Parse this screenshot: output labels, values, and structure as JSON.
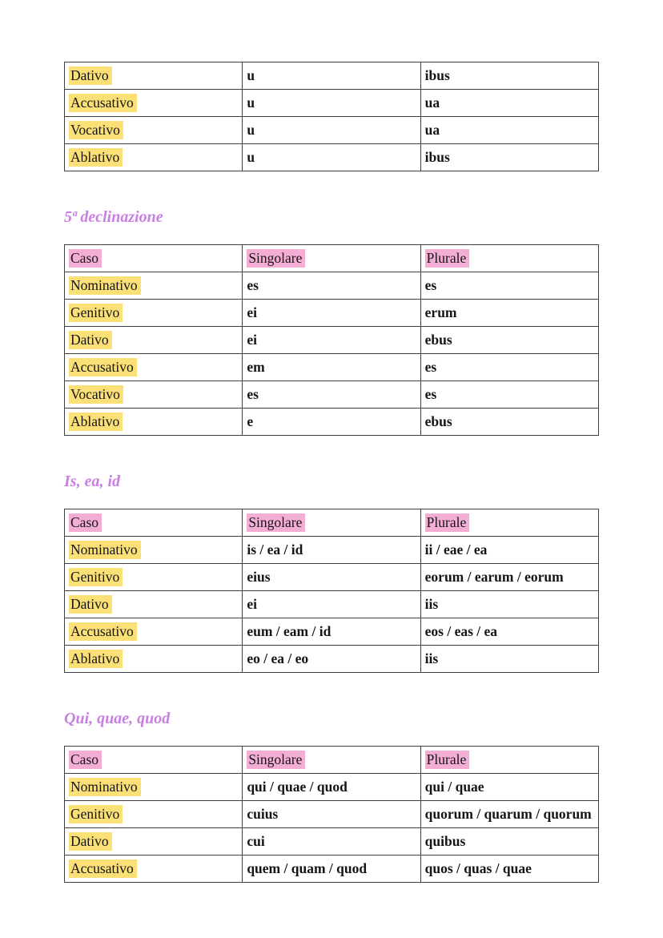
{
  "colors": {
    "highlight_yellow": "#fbe077",
    "highlight_pink": "#f4aed6",
    "heading_text": "#c77fe2",
    "table_border": "#3f3f3f",
    "body_text": "#151515"
  },
  "sections": [
    {
      "heading": null,
      "columns": null,
      "rows": [
        [
          "Dativo",
          "u",
          "ibus"
        ],
        [
          "Accusativo",
          "u",
          "ua"
        ],
        [
          "Vocativo",
          "u",
          "ua"
        ],
        [
          "Ablativo",
          "u",
          "ibus"
        ]
      ]
    },
    {
      "heading": "5ª declinazione",
      "columns": [
        "Caso",
        "Singolare",
        "Plurale"
      ],
      "rows": [
        [
          "Nominativo",
          "es",
          "es"
        ],
        [
          "Genitivo",
          "ei",
          "erum"
        ],
        [
          "Dativo",
          "ei",
          "ebus"
        ],
        [
          "Accusativo",
          "em",
          "es"
        ],
        [
          "Vocativo",
          "es",
          "es"
        ],
        [
          "Ablativo",
          "e",
          "ebus"
        ]
      ]
    },
    {
      "heading": "Is, ea, id",
      "columns": [
        "Caso",
        "Singolare",
        "Plurale"
      ],
      "rows": [
        [
          "Nominativo",
          "is / ea / id",
          "ii / eae / ea"
        ],
        [
          "Genitivo",
          "eius",
          "eorum / earum / eorum"
        ],
        [
          "Dativo",
          "ei",
          "iis"
        ],
        [
          "Accusativo",
          "eum / eam / id",
          "eos / eas / ea"
        ],
        [
          "Ablativo",
          "eo / ea / eo",
          "iis"
        ]
      ]
    },
    {
      "heading": "Qui, quae, quod",
      "columns": [
        "Caso",
        "Singolare",
        "Plurale"
      ],
      "rows": [
        [
          "Nominativo",
          "qui / quae / quod",
          "qui / quae"
        ],
        [
          "Genitivo",
          "cuius",
          "quorum / quarum / quorum"
        ],
        [
          "Dativo",
          "cui",
          "quibus"
        ],
        [
          "Accusativo",
          "quem / quam / quod",
          "quos / quas / quae"
        ]
      ]
    }
  ]
}
